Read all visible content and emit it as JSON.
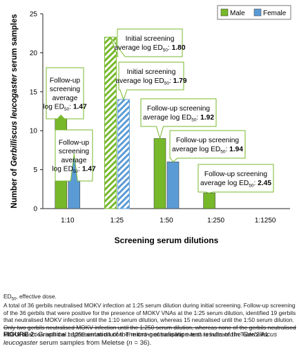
{
  "chart_data": {
    "type": "bar",
    "title": "",
    "xlabel": "Screening serum dilutions",
    "ylabel_prefix": "Number of ",
    "ylabel_species": "Gerbilliscus leucogaster",
    "ylabel_suffix": " serum samples",
    "ylim": [
      0,
      25
    ],
    "yticks": [
      "0",
      "5",
      "10",
      "15",
      "20",
      "25"
    ],
    "categories": [
      "1:10",
      "1:25",
      "1:50",
      "1:250",
      "1:1250"
    ],
    "series": [
      {
        "name": "Male",
        "color": "#76b82a",
        "values": [
          12,
          22,
          9,
          2,
          0
        ]
      },
      {
        "name": "Female",
        "color": "#5b9bd5",
        "values": [
          7,
          14,
          6,
          0,
          0
        ]
      }
    ],
    "pattern_category": "1:25",
    "legend_position": "top-right",
    "grid": false,
    "annotations": [
      {
        "id": "fu-male-10",
        "lines": [
          "Follow-up",
          "screening",
          "average"
        ],
        "prefix": "log ED",
        "sub": "50",
        "colon": ": ",
        "value": "1.47"
      },
      {
        "id": "fu-female-10",
        "lines": [
          "Follow-up",
          "screening",
          "average"
        ],
        "prefix": "log ED",
        "sub": "50",
        "colon": ": ",
        "value": "1.47"
      },
      {
        "id": "init-male-25",
        "lines": [
          "Initial screening"
        ],
        "prefix": "average log ED",
        "sub": "50",
        "colon": ": ",
        "value": "1.80"
      },
      {
        "id": "init-female-25",
        "lines": [
          "Initial screening"
        ],
        "prefix": "average log ED",
        "sub": "50",
        "colon": ": ",
        "value": "1.79"
      },
      {
        "id": "fu-male-50",
        "lines": [
          "Follow-up screening"
        ],
        "prefix": "average log ED",
        "sub": "50",
        "colon": ": ",
        "value": "1.92"
      },
      {
        "id": "fu-female-50",
        "lines": [
          "Follow-up screening"
        ],
        "prefix": "average log ED",
        "sub": "50",
        "colon": ": ",
        "value": "1.94"
      },
      {
        "id": "fu-male-250",
        "lines": [
          "Follow-up screening"
        ],
        "prefix": "average log ED",
        "sub": "50",
        "colon": ": ",
        "value": "2.45"
      }
    ]
  },
  "abbreviation": {
    "term": "ED",
    "sub": "50",
    "rest": ", effective dose."
  },
  "note": "A total of 36 gerbils neutralised MOKV infection at 1:25 serum dilution during initial screening. Follow-up screening of the 36 gerbils that were positive for the presence of MOKV VNAs at the 1:25 serum dilution, identified 19 gerbils that neutralised MOKV infection until the 1:10 serum dilution, whereas 15 neutralised until the 1:50 serum dilution. Only two gerbils neutralised MOKV infection until the 1:250 serum dilution, whereas none of the gerbils neutralised MOKV infection until the 1:1250 serum dilution. The timing of sampling events is indicated in Table 2-A1.",
  "caption": {
    "label": "FIGURE 2:",
    "text_before": " Graphical representation of the micro-neutralisation test results of the ",
    "species": "Gerbilliscus leucogaster",
    "text_mid": " serum samples from Meletse (",
    "n_var": "n",
    "text_after": " = 36)."
  }
}
